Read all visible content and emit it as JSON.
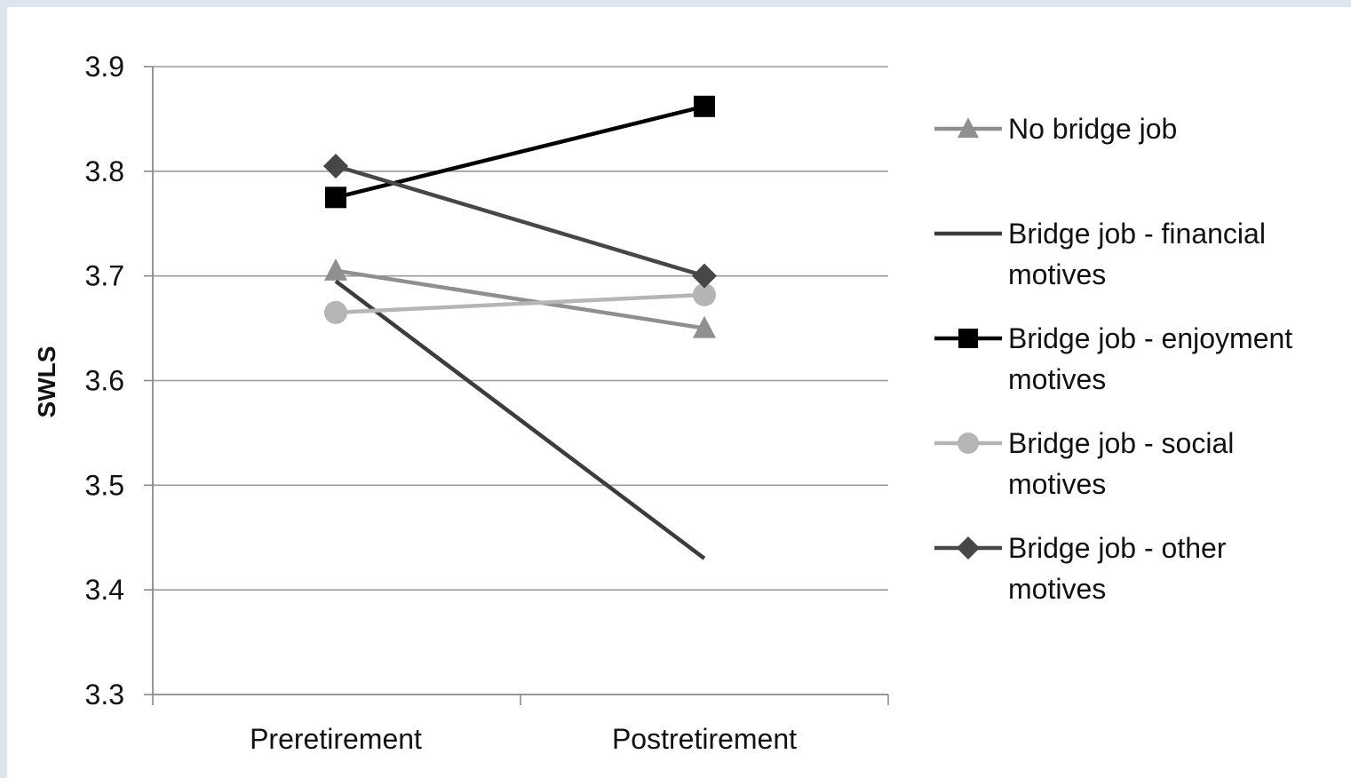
{
  "chart_data": {
    "type": "line",
    "ylabel": "SWLS",
    "xlabel": "",
    "categories": [
      "Preretirement",
      "Postretirement"
    ],
    "ylim": [
      3.3,
      3.9
    ],
    "yticks": [
      "3.3",
      "3.4",
      "3.5",
      "3.6",
      "3.7",
      "3.8",
      "3.9"
    ],
    "grid": true,
    "legend_position": "right",
    "series": [
      {
        "name": "No bridge job",
        "values": [
          3.705,
          3.65
        ],
        "color": "#8f8f8f",
        "marker": "triangle",
        "legend_lines": [
          "No bridge job"
        ]
      },
      {
        "name": "Bridge job - financial motives",
        "values": [
          3.695,
          3.43
        ],
        "color": "#3c3c3c",
        "marker": "none",
        "legend_lines": [
          "Bridge job - financial",
          "motives"
        ]
      },
      {
        "name": "Bridge job - enjoyment motives",
        "values": [
          3.775,
          3.862
        ],
        "color": "#000000",
        "marker": "square",
        "legend_lines": [
          "Bridge job - enjoyment",
          "motives"
        ]
      },
      {
        "name": "Bridge job - social motives",
        "values": [
          3.665,
          3.682
        ],
        "color": "#b5b5b5",
        "marker": "circle",
        "legend_lines": [
          "Bridge job - social",
          "motives"
        ]
      },
      {
        "name": "Bridge job - other motives",
        "values": [
          3.805,
          3.7
        ],
        "color": "#474747",
        "marker": "diamond",
        "legend_lines": [
          "Bridge job - other",
          "motives"
        ]
      }
    ]
  }
}
